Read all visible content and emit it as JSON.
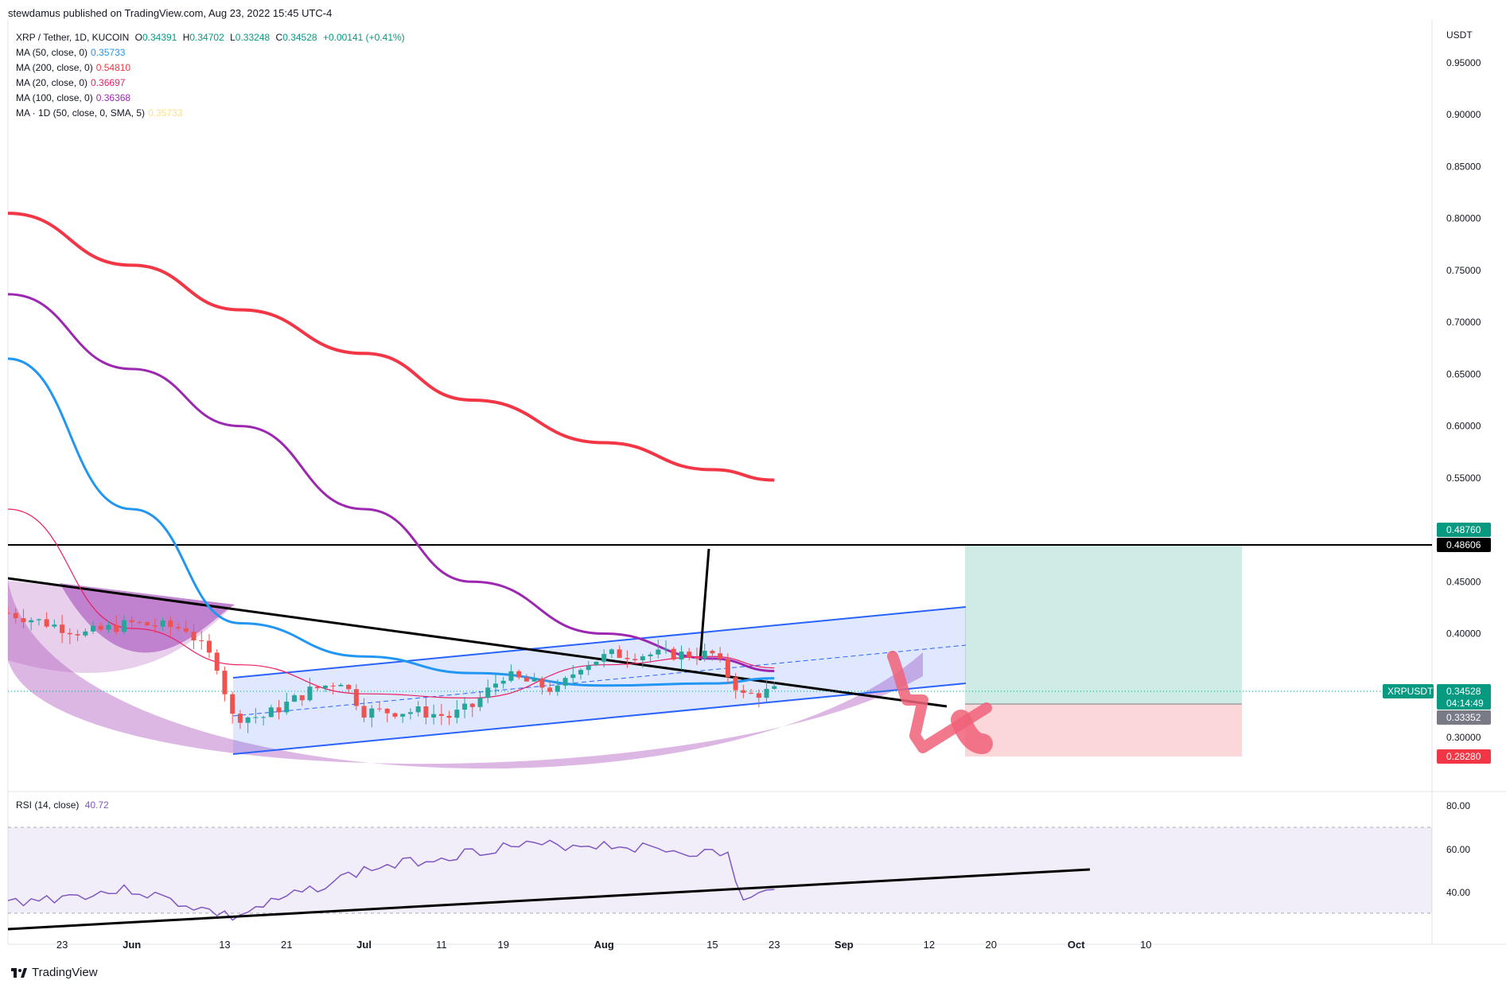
{
  "header": {
    "text": "stewdamus published on TradingView.com, Aug 23, 2022 15:45 UTC-4"
  },
  "symbol": {
    "name": "XRP / Tether, 1D, KUCOIN",
    "o_label": "O",
    "o": "0.34391",
    "h_label": "H",
    "h": "0.34702",
    "l_label": "L",
    "l": "0.33248",
    "c_label": "C",
    "c": "0.34528",
    "change": "+0.00141 (+0.41%)"
  },
  "indicators": [
    {
      "label": "MA (50, close, 0)",
      "value": "0.35733",
      "color": "#2196f3"
    },
    {
      "label": "MA (200, close, 0)",
      "value": "0.54810",
      "color": "#f23645"
    },
    {
      "label": "MA (20, close, 0)",
      "value": "0.36697",
      "color": "#e91e63"
    },
    {
      "label": "MA (100, close, 0)",
      "value": "0.36368",
      "color": "#9c27b0"
    },
    {
      "label": "MA · 1D (50, close, 0, SMA, 5)",
      "value": "0.35733",
      "color": "#ffe082"
    }
  ],
  "rsi": {
    "label": "RSI (14, close)",
    "value": "40.72",
    "color": "#7e57c2",
    "ticks": [
      "80.00",
      "60.00",
      "40.00"
    ]
  },
  "price_axis": {
    "currency": "USDT",
    "ticks": [
      "0.95000",
      "0.90000",
      "0.85000",
      "0.80000",
      "0.75000",
      "0.70000",
      "0.65000",
      "0.60000",
      "0.55000",
      "0.45000",
      "0.40000",
      "0.30000"
    ]
  },
  "price_tags": {
    "target": {
      "value": "0.48760",
      "color": "#089981"
    },
    "level": {
      "value": "0.48606",
      "color": "#000000"
    },
    "symbol": {
      "name": "XRPUSDT",
      "price": "0.34528",
      "countdown": "04:14:49",
      "color": "#089981"
    },
    "entry": {
      "value": "0.33352",
      "color": "#787b86"
    },
    "stop": {
      "value": "0.28280",
      "color": "#f23645"
    }
  },
  "time_axis": {
    "labels": [
      "23",
      "Jun",
      "13",
      "21",
      "Jul",
      "11",
      "19",
      "Aug",
      "15",
      "23",
      "Sep",
      "12",
      "20",
      "Oct",
      "10"
    ]
  },
  "footer": {
    "brand": "TradingView"
  },
  "chart_data": {
    "type": "candlestick",
    "symbol": "XRP / Tether, 1D, KUCOIN",
    "y_range": [
      0.27,
      0.97
    ],
    "x_range": [
      "2022-05-16",
      "2022-10-15"
    ],
    "series": [
      {
        "name": "MA (200, close, 0)",
        "color": "#f23645",
        "x": [
          "2022-05-16",
          "2022-06-01",
          "2022-06-15",
          "2022-07-01",
          "2022-07-15",
          "2022-08-01",
          "2022-08-15",
          "2022-08-23"
        ],
        "values": [
          0.805,
          0.755,
          0.712,
          0.67,
          0.625,
          0.584,
          0.558,
          0.548
        ]
      },
      {
        "name": "MA (100, close, 0)",
        "color": "#9c27b0",
        "x": [
          "2022-05-16",
          "2022-06-01",
          "2022-06-15",
          "2022-07-01",
          "2022-07-15",
          "2022-08-01",
          "2022-08-15",
          "2022-08-23"
        ],
        "values": [
          0.727,
          0.655,
          0.6,
          0.52,
          0.45,
          0.4,
          0.376,
          0.364
        ]
      },
      {
        "name": "MA (50, close, 0)",
        "color": "#2196f3",
        "x": [
          "2022-05-16",
          "2022-06-01",
          "2022-06-15",
          "2022-07-01",
          "2022-07-15",
          "2022-08-01",
          "2022-08-15",
          "2022-08-23"
        ],
        "values": [
          0.665,
          0.52,
          0.41,
          0.378,
          0.362,
          0.35,
          0.352,
          0.357
        ]
      },
      {
        "name": "MA (20, close, 0)",
        "color": "#e91e63",
        "x": [
          "2022-05-16",
          "2022-06-01",
          "2022-06-15",
          "2022-07-01",
          "2022-07-15",
          "2022-08-01",
          "2022-08-15",
          "2022-08-23"
        ],
        "values": [
          0.52,
          0.405,
          0.37,
          0.342,
          0.338,
          0.37,
          0.378,
          0.367
        ]
      }
    ],
    "horizontal_level": 0.48606,
    "position": {
      "entry": 0.33352,
      "target": 0.4876,
      "stop": 0.2828
    },
    "rsi": {
      "range": [
        30,
        70
      ],
      "x": [
        "2022-05-16",
        "2022-06-01",
        "2022-06-14",
        "2022-07-01",
        "2022-07-19",
        "2022-08-01",
        "2022-08-17",
        "2022-08-19",
        "2022-08-23"
      ],
      "values": [
        35,
        41,
        28,
        50,
        61,
        62,
        57,
        35,
        41
      ]
    }
  }
}
